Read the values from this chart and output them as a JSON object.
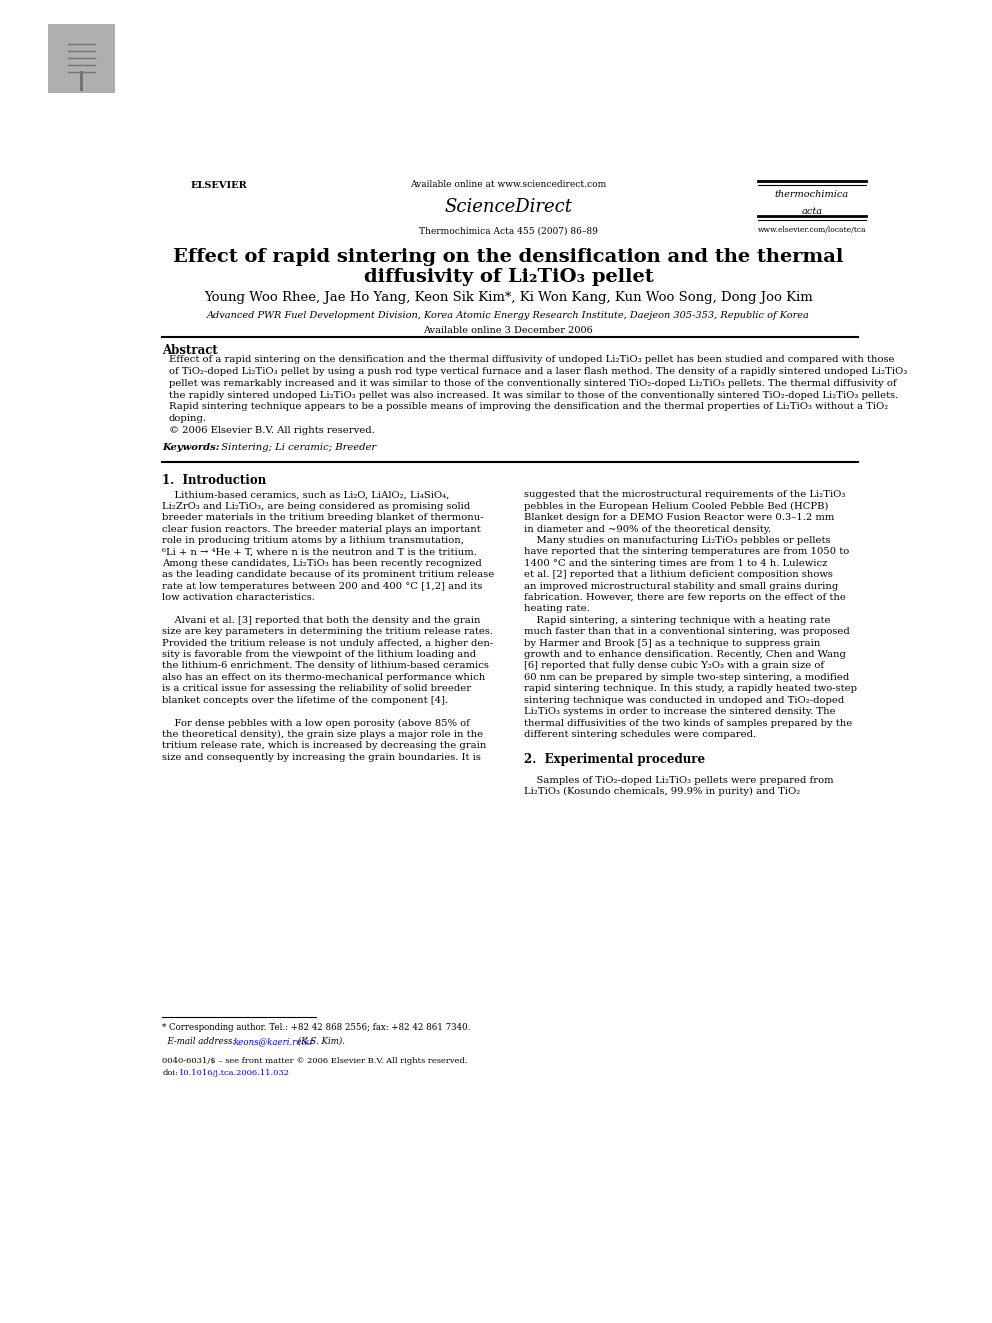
{
  "page_width": 9.92,
  "page_height": 13.23,
  "bg_color": "#ffffff",
  "header_available_online": "Available online at www.sciencedirect.com",
  "header_sciencedirect": "ScienceDirect",
  "header_journal_name_line1": "thermochimica",
  "header_journal_name_line2": "acta",
  "header_journal_info": "Thermochimica Acta 455 (2007) 86–89",
  "header_journal_url": "www.elsevier.com/locate/tca",
  "header_elsevier": "ELSEVIER",
  "title_line1": "Effect of rapid sintering on the densification and the thermal",
  "title_line2": "diffusivity of Li₂TiO₃ pellet",
  "authors": "Young Woo Rhee, Jae Ho Yang, Keon Sik Kim*, Ki Won Kang, Kun Woo Song, Dong Joo Kim",
  "affiliation": "Advanced PWR Fuel Development Division, Korea Atomic Energy Research Institute, Daejeon 305-353, Republic of Korea",
  "available_online_date": "Available online 3 December 2006",
  "abstract_title": "Abstract",
  "abstract_lines": [
    "Effect of a rapid sintering on the densification and the thermal diffusivity of undoped Li₂TiO₃ pellet has been studied and compared with those",
    "of TiO₂-doped Li₂TiO₃ pellet by using a push rod type vertical furnace and a laser flash method. The density of a rapidly sintered undoped Li₂TiO₃",
    "pellet was remarkably increased and it was similar to those of the conventionally sintered TiO₂-doped Li₂TiO₃ pellets. The thermal diffusivity of",
    "the rapidly sintered undoped Li₂TiO₃ pellet was also increased. It was similar to those of the conventionally sintered TiO₂-doped Li₂TiO₃ pellets.",
    "Rapid sintering technique appears to be a possible means of improving the densification and the thermal properties of Li₂TiO₃ without a TiO₂",
    "doping.",
    "© 2006 Elsevier B.V. All rights reserved."
  ],
  "keywords_label": "Keywords:",
  "keywords": "  Sintering; Li ceramic; Breeder",
  "section1_title": "1.  Introduction",
  "col1_lines": [
    "    Lithium-based ceramics, such as Li₂O, LiAlO₂, Li₄SiO₄,",
    "Li₂ZrO₃ and Li₂TiO₃, are being considered as promising solid",
    "breeder materials in the tritium breeding blanket of thermonu-",
    "clear fusion reactors. The breeder material plays an important",
    "role in producing tritium atoms by a lithium transmutation,",
    "⁶Li + n → ⁴He + T, where n is the neutron and T is the tritium.",
    "Among these candidates, Li₂TiO₃ has been recently recognized",
    "as the leading candidate because of its prominent tritium release",
    "rate at low temperatures between 200 and 400 °C [1,2] and its",
    "low activation characteristics.",
    "",
    "    Alvani et al. [3] reported that both the density and the grain",
    "size are key parameters in determining the tritium release rates.",
    "Provided the tritium release is not unduly affected, a higher den-",
    "sity is favorable from the viewpoint of the lithium loading and",
    "the lithium-6 enrichment. The density of lithium-based ceramics",
    "also has an effect on its thermo-mechanical performance which",
    "is a critical issue for assessing the reliability of solid breeder",
    "blanket concepts over the lifetime of the component [4].",
    "",
    "    For dense pebbles with a low open porosity (above 85% of",
    "the theoretical density), the grain size plays a major role in the",
    "tritium release rate, which is increased by decreasing the grain",
    "size and consequently by increasing the grain boundaries. It is"
  ],
  "col2_lines": [
    "suggested that the microstructural requirements of the Li₂TiO₃",
    "pebbles in the European Helium Cooled Pebble Bed (HCPB)",
    "Blanket design for a DEMO Fusion Reactor were 0.3–1.2 mm",
    "in diameter and ~90% of the theoretical density.",
    "    Many studies on manufacturing Li₂TiO₃ pebbles or pellets",
    "have reported that the sintering temperatures are from 1050 to",
    "1400 °C and the sintering times are from 1 to 4 h. Lulewicz",
    "et al. [2] reported that a lithium deficient composition shows",
    "an improved microstructural stability and small grains during",
    "fabrication. However, there are few reports on the effect of the",
    "heating rate.",
    "    Rapid sintering, a sintering technique with a heating rate",
    "much faster than that in a conventional sintering, was proposed",
    "by Harmer and Brook [5] as a technique to suppress grain",
    "growth and to enhance densification. Recently, Chen and Wang",
    "[6] reported that fully dense cubic Y₂O₃ with a grain size of",
    "60 nm can be prepared by simple two-step sintering, a modified",
    "rapid sintering technique. In this study, a rapidly heated two-step",
    "sintering technique was conducted in undoped and TiO₂-doped",
    "Li₂TiO₃ systems in order to increase the sintered density. The",
    "thermal diffusivities of the two kinds of samples prepared by the",
    "different sintering schedules were compared.",
    "",
    "2.  Experimental procedure",
    "",
    "    Samples of TiO₂-doped Li₂TiO₃ pellets were prepared from",
    "Li₂TiO₃ (Kosundo chemicals, 99.9% in purity) and TiO₂"
  ],
  "footnote_line": "* Corresponding author. Tel.: +82 42 868 2556; fax: +82 42 861 7340.",
  "footnote_email_prefix": "  E-mail address: ",
  "footnote_email": "keons@kaeri.re.kr",
  "footnote_email_suffix": " (K.S. Kim).",
  "footer_line1": "0040-6031/$ – see front matter © 2006 Elsevier B.V. All rights reserved.",
  "footer_doi_prefix": "doi:",
  "footer_doi": "10.1016/j.tca.2006.11.032"
}
